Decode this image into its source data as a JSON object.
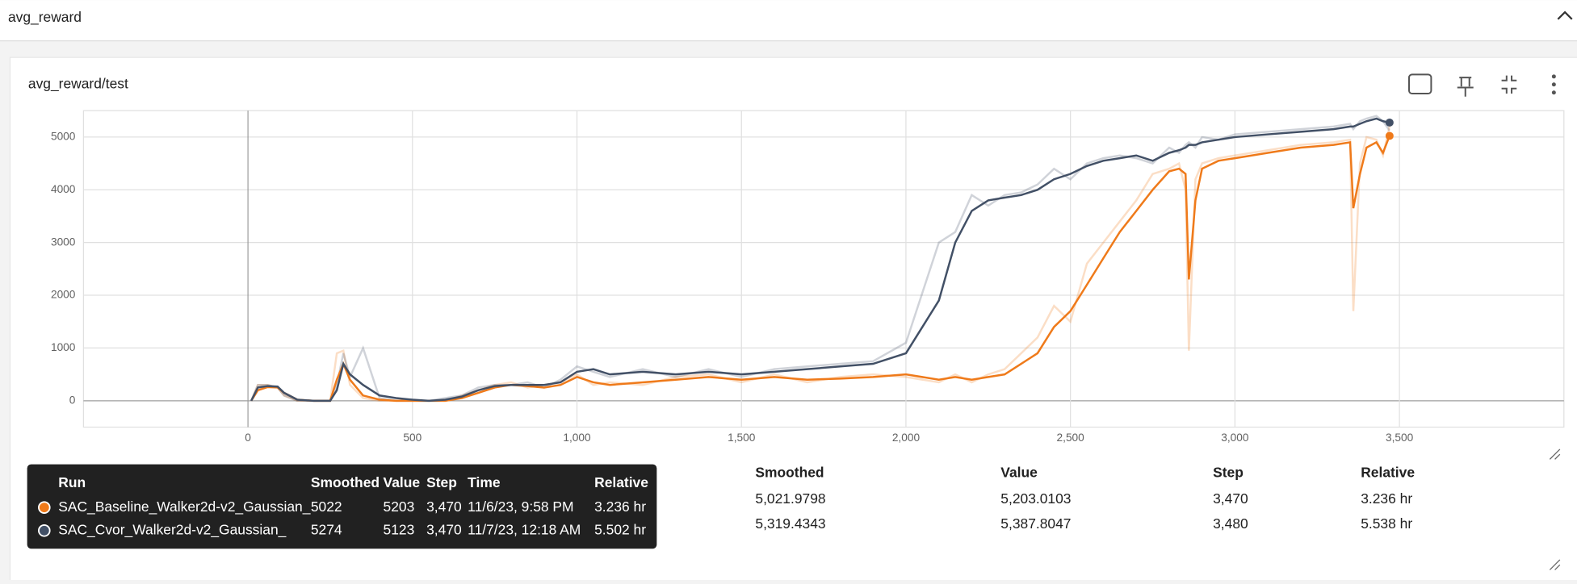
{
  "header": {
    "title": "avg_reward"
  },
  "card": {
    "title": "avg_reward/test"
  },
  "chart_data": {
    "type": "line",
    "x": [
      10,
      30,
      60,
      90,
      110,
      150,
      200,
      250,
      270,
      290,
      310,
      350,
      400,
      450,
      500,
      550,
      600,
      650,
      700,
      750,
      800,
      850,
      900,
      950,
      1000,
      1050,
      1100,
      1200,
      1300,
      1400,
      1500,
      1600,
      1700,
      1800,
      1900,
      2000,
      2100,
      2150,
      2200,
      2250,
      2300,
      2350,
      2400,
      2450,
      2500,
      2550,
      2600,
      2650,
      2700,
      2750,
      2800,
      2830,
      2850,
      2860,
      2880,
      2900,
      2950,
      3000,
      3100,
      3200,
      3300,
      3350,
      3360,
      3380,
      3400,
      3430,
      3450,
      3470
    ],
    "series": [
      {
        "name": "SAC_Baseline_Walker2d-v2_Gaussian_",
        "color": "#ef7a1a",
        "values": [
          0,
          200,
          260,
          250,
          150,
          20,
          0,
          0,
          400,
          700,
          400,
          100,
          20,
          0,
          0,
          0,
          0,
          50,
          150,
          250,
          300,
          280,
          250,
          300,
          450,
          350,
          300,
          350,
          400,
          450,
          400,
          450,
          400,
          420,
          450,
          500,
          400,
          450,
          400,
          450,
          500,
          700,
          900,
          1400,
          1700,
          2200,
          2700,
          3200,
          3600,
          4000,
          4350,
          4400,
          4300,
          2300,
          3800,
          4400,
          4550,
          4600,
          4700,
          4800,
          4850,
          4900,
          3650,
          4300,
          4800,
          4900,
          4700,
          5022
        ],
        "raw": [
          0,
          300,
          300,
          250,
          100,
          0,
          0,
          0,
          900,
          950,
          300,
          50,
          0,
          0,
          0,
          0,
          0,
          100,
          200,
          300,
          350,
          250,
          300,
          350,
          500,
          300,
          350,
          300,
          450,
          500,
          350,
          500,
          350,
          450,
          500,
          450,
          350,
          500,
          350,
          500,
          600,
          900,
          1200,
          1800,
          1500,
          2600,
          3000,
          3400,
          3800,
          4300,
          4400,
          4500,
          4000,
          950,
          4200,
          4500,
          4600,
          4650,
          4750,
          4850,
          4900,
          4950,
          1700,
          4500,
          5000,
          4950,
          4650,
          5203
        ]
      },
      {
        "name": "SAC_Cvor_Walker2d-v2_Gaussian_",
        "color": "#425066",
        "values": [
          0,
          250,
          280,
          270,
          150,
          20,
          0,
          0,
          200,
          700,
          500,
          300,
          100,
          50,
          20,
          0,
          20,
          80,
          200,
          280,
          300,
          300,
          300,
          350,
          550,
          600,
          500,
          550,
          500,
          550,
          500,
          550,
          600,
          650,
          700,
          900,
          1900,
          3000,
          3600,
          3800,
          3850,
          3900,
          4000,
          4200,
          4300,
          4450,
          4550,
          4600,
          4650,
          4550,
          4700,
          4750,
          4800,
          4850,
          4850,
          4900,
          4950,
          5000,
          5050,
          5100,
          5150,
          5200,
          5200,
          5250,
          5300,
          5350,
          5300,
          5274
        ],
        "raw": [
          0,
          300,
          300,
          250,
          100,
          0,
          0,
          0,
          300,
          900,
          450,
          1000,
          50,
          0,
          0,
          0,
          50,
          100,
          250,
          300,
          300,
          350,
          250,
          400,
          650,
          550,
          450,
          600,
          450,
          600,
          450,
          600,
          650,
          700,
          750,
          1100,
          3000,
          3200,
          3900,
          3700,
          3900,
          3950,
          4100,
          4400,
          4200,
          4500,
          4600,
          4650,
          4600,
          4500,
          4800,
          4700,
          4850,
          4900,
          4800,
          5000,
          4950,
          5050,
          5100,
          5150,
          5200,
          5250,
          5150,
          5300,
          5350,
          5400,
          5300,
          5123
        ]
      }
    ],
    "xlim": [
      -500,
      4000
    ],
    "xticks": [
      0,
      500,
      {
        "value": 1000,
        "label": "1,000"
      },
      {
        "value": 1500,
        "label": "1,500"
      },
      {
        "value": 2000,
        "label": "2,000"
      },
      {
        "value": 2500,
        "label": "2,500"
      },
      {
        "value": 3000,
        "label": "3,000"
      },
      {
        "value": 3500,
        "label": "3,500"
      }
    ],
    "ylim": [
      -500,
      5500
    ],
    "yticks": [
      0,
      1000,
      2000,
      3000,
      4000,
      5000
    ],
    "grid": true
  },
  "table": {
    "columns": [
      "Run ↑",
      "Smoothed",
      "Value",
      "Step",
      "Relative"
    ],
    "rows": [
      [
        "SAC_Baseline_Walker2d-v2_Gaussian_",
        "5,021.9798",
        "5,203.0103",
        "3,470",
        "3.236 hr"
      ],
      [
        "SAC_Cvor_Walker2d-v2_Gaussian_",
        "5,319.4343",
        "5,387.8047",
        "3,480",
        "5.538 hr"
      ]
    ]
  },
  "tooltip": {
    "columns": [
      "Run",
      "Smoothed",
      "Value",
      "Step",
      "Time",
      "Relative"
    ],
    "rows": [
      [
        "SAC_Baseline_Walker2d-v2_Gaussian_",
        "5022",
        "5203",
        "3,470",
        "11/6/23, 9:58 PM",
        "3.236 hr"
      ],
      [
        "SAC_Cvor_Walker2d-v2_Gaussian_",
        "5274",
        "5123",
        "3,470",
        "11/7/23, 12:18 AM",
        "5.502 hr"
      ]
    ]
  }
}
